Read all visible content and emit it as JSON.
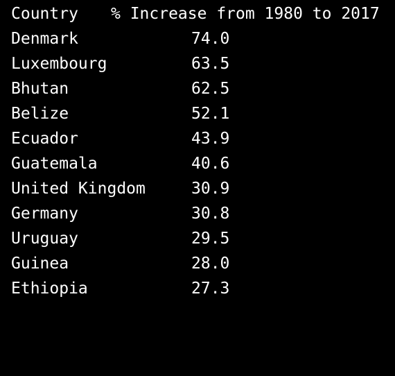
{
  "table": {
    "headers": {
      "country": "Country",
      "increase": "% Increase from 1980 to 2017"
    },
    "rows": [
      {
        "country": "Denmark",
        "increase": "74.0"
      },
      {
        "country": "Luxembourg",
        "increase": "63.5"
      },
      {
        "country": "Bhutan",
        "increase": "62.5"
      },
      {
        "country": "Belize",
        "increase": "52.1"
      },
      {
        "country": "Ecuador",
        "increase": "43.9"
      },
      {
        "country": "Guatemala",
        "increase": "40.6"
      },
      {
        "country": "United Kingdom",
        "increase": "30.9"
      },
      {
        "country": "Germany",
        "increase": "30.8"
      },
      {
        "country": "Uruguay",
        "increase": "29.5"
      },
      {
        "country": "Guinea",
        "increase": "28.0"
      },
      {
        "country": "Ethiopia",
        "increase": "27.3"
      }
    ]
  },
  "colors": {
    "background": "#000000",
    "text": "#ffffff"
  }
}
